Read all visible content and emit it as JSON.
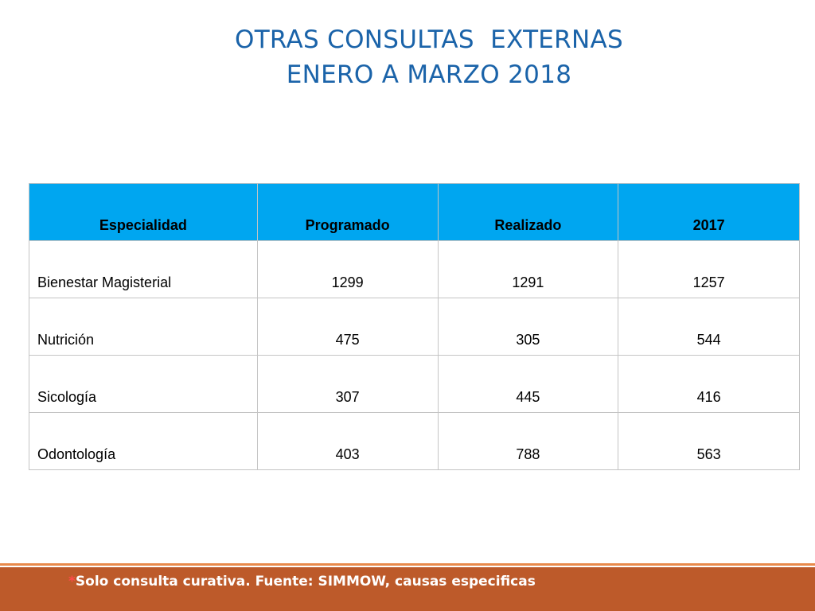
{
  "title": {
    "line1": "OTRAS CONSULTAS  EXTERNAS",
    "line2": "ENERO A MARZO 2018"
  },
  "table": {
    "headers": [
      "Especialidad",
      "Programado",
      "Realizado",
      "2017"
    ],
    "rows": [
      [
        "Bienestar Magisterial",
        "1299",
        "1291",
        "1257"
      ],
      [
        "Nutrición",
        "475",
        "305",
        "544"
      ],
      [
        "Sicología",
        "307",
        "445",
        "416"
      ],
      [
        "Odontología",
        "403",
        "788",
        "563"
      ]
    ]
  },
  "footer": {
    "asterisk": "*",
    "note": "Solo consulta curativa. Fuente: SIMMOW, causas especificas"
  },
  "colors": {
    "title": "#1a63a9",
    "header_bg": "#00a6f0",
    "footer_bar": "#bd5a2a",
    "footer_accent": "#e8894a"
  }
}
